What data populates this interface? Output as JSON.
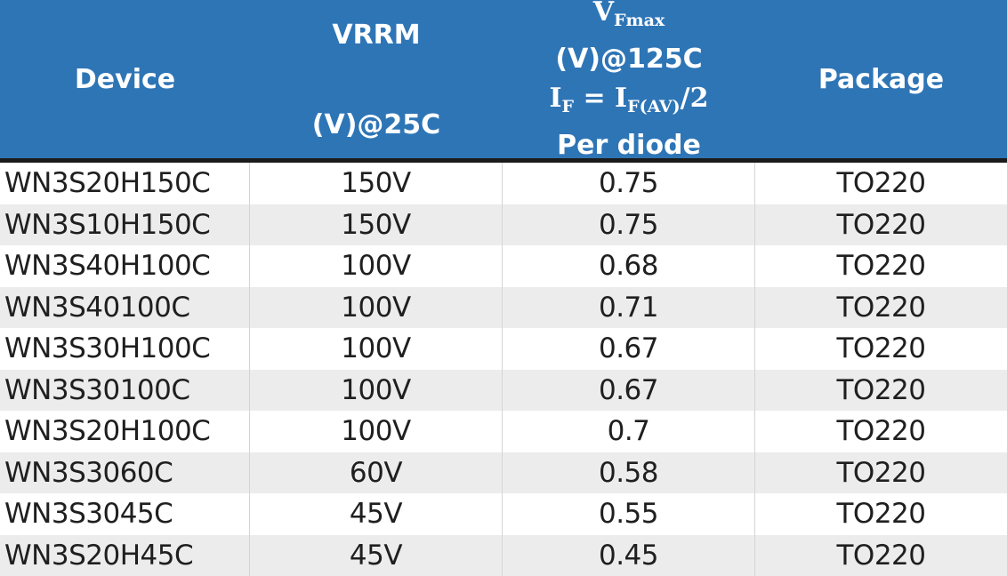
{
  "header": {
    "device": "Device",
    "vrrm": [
      "VRRM",
      "(V)@25C"
    ],
    "vf": {
      "v": "V",
      "v_sub": "Fmax",
      "cond": "(V)@125C",
      "formula": [
        "I",
        "F",
        " = I",
        "F(AV)",
        "/2"
      ],
      "note": "Per diode"
    },
    "package": "Package"
  },
  "table": {
    "rows": [
      [
        "WN3S20H150C",
        "150V",
        "0.75",
        "TO220"
      ],
      [
        "WN3S10H150C",
        "150V",
        "0.75",
        "TO220"
      ],
      [
        "WN3S40H100C",
        "100V",
        "0.68",
        "TO220"
      ],
      [
        "WN3S40100C",
        "100V",
        "0.71",
        "TO220"
      ],
      [
        "WN3S30H100C",
        "100V",
        "0.67",
        "TO220"
      ],
      [
        "WN3S30100C",
        "100V",
        "0.67",
        "TO220"
      ],
      [
        "WN3S20H100C",
        "100V",
        "0.7",
        "TO220"
      ],
      [
        "WN3S3060C",
        "60V",
        "0.58",
        "TO220"
      ],
      [
        "WN3S3045C",
        "45V",
        "0.55",
        "TO220"
      ],
      [
        "WN3S20H45C",
        "45V",
        "0.45",
        "TO220"
      ]
    ]
  }
}
